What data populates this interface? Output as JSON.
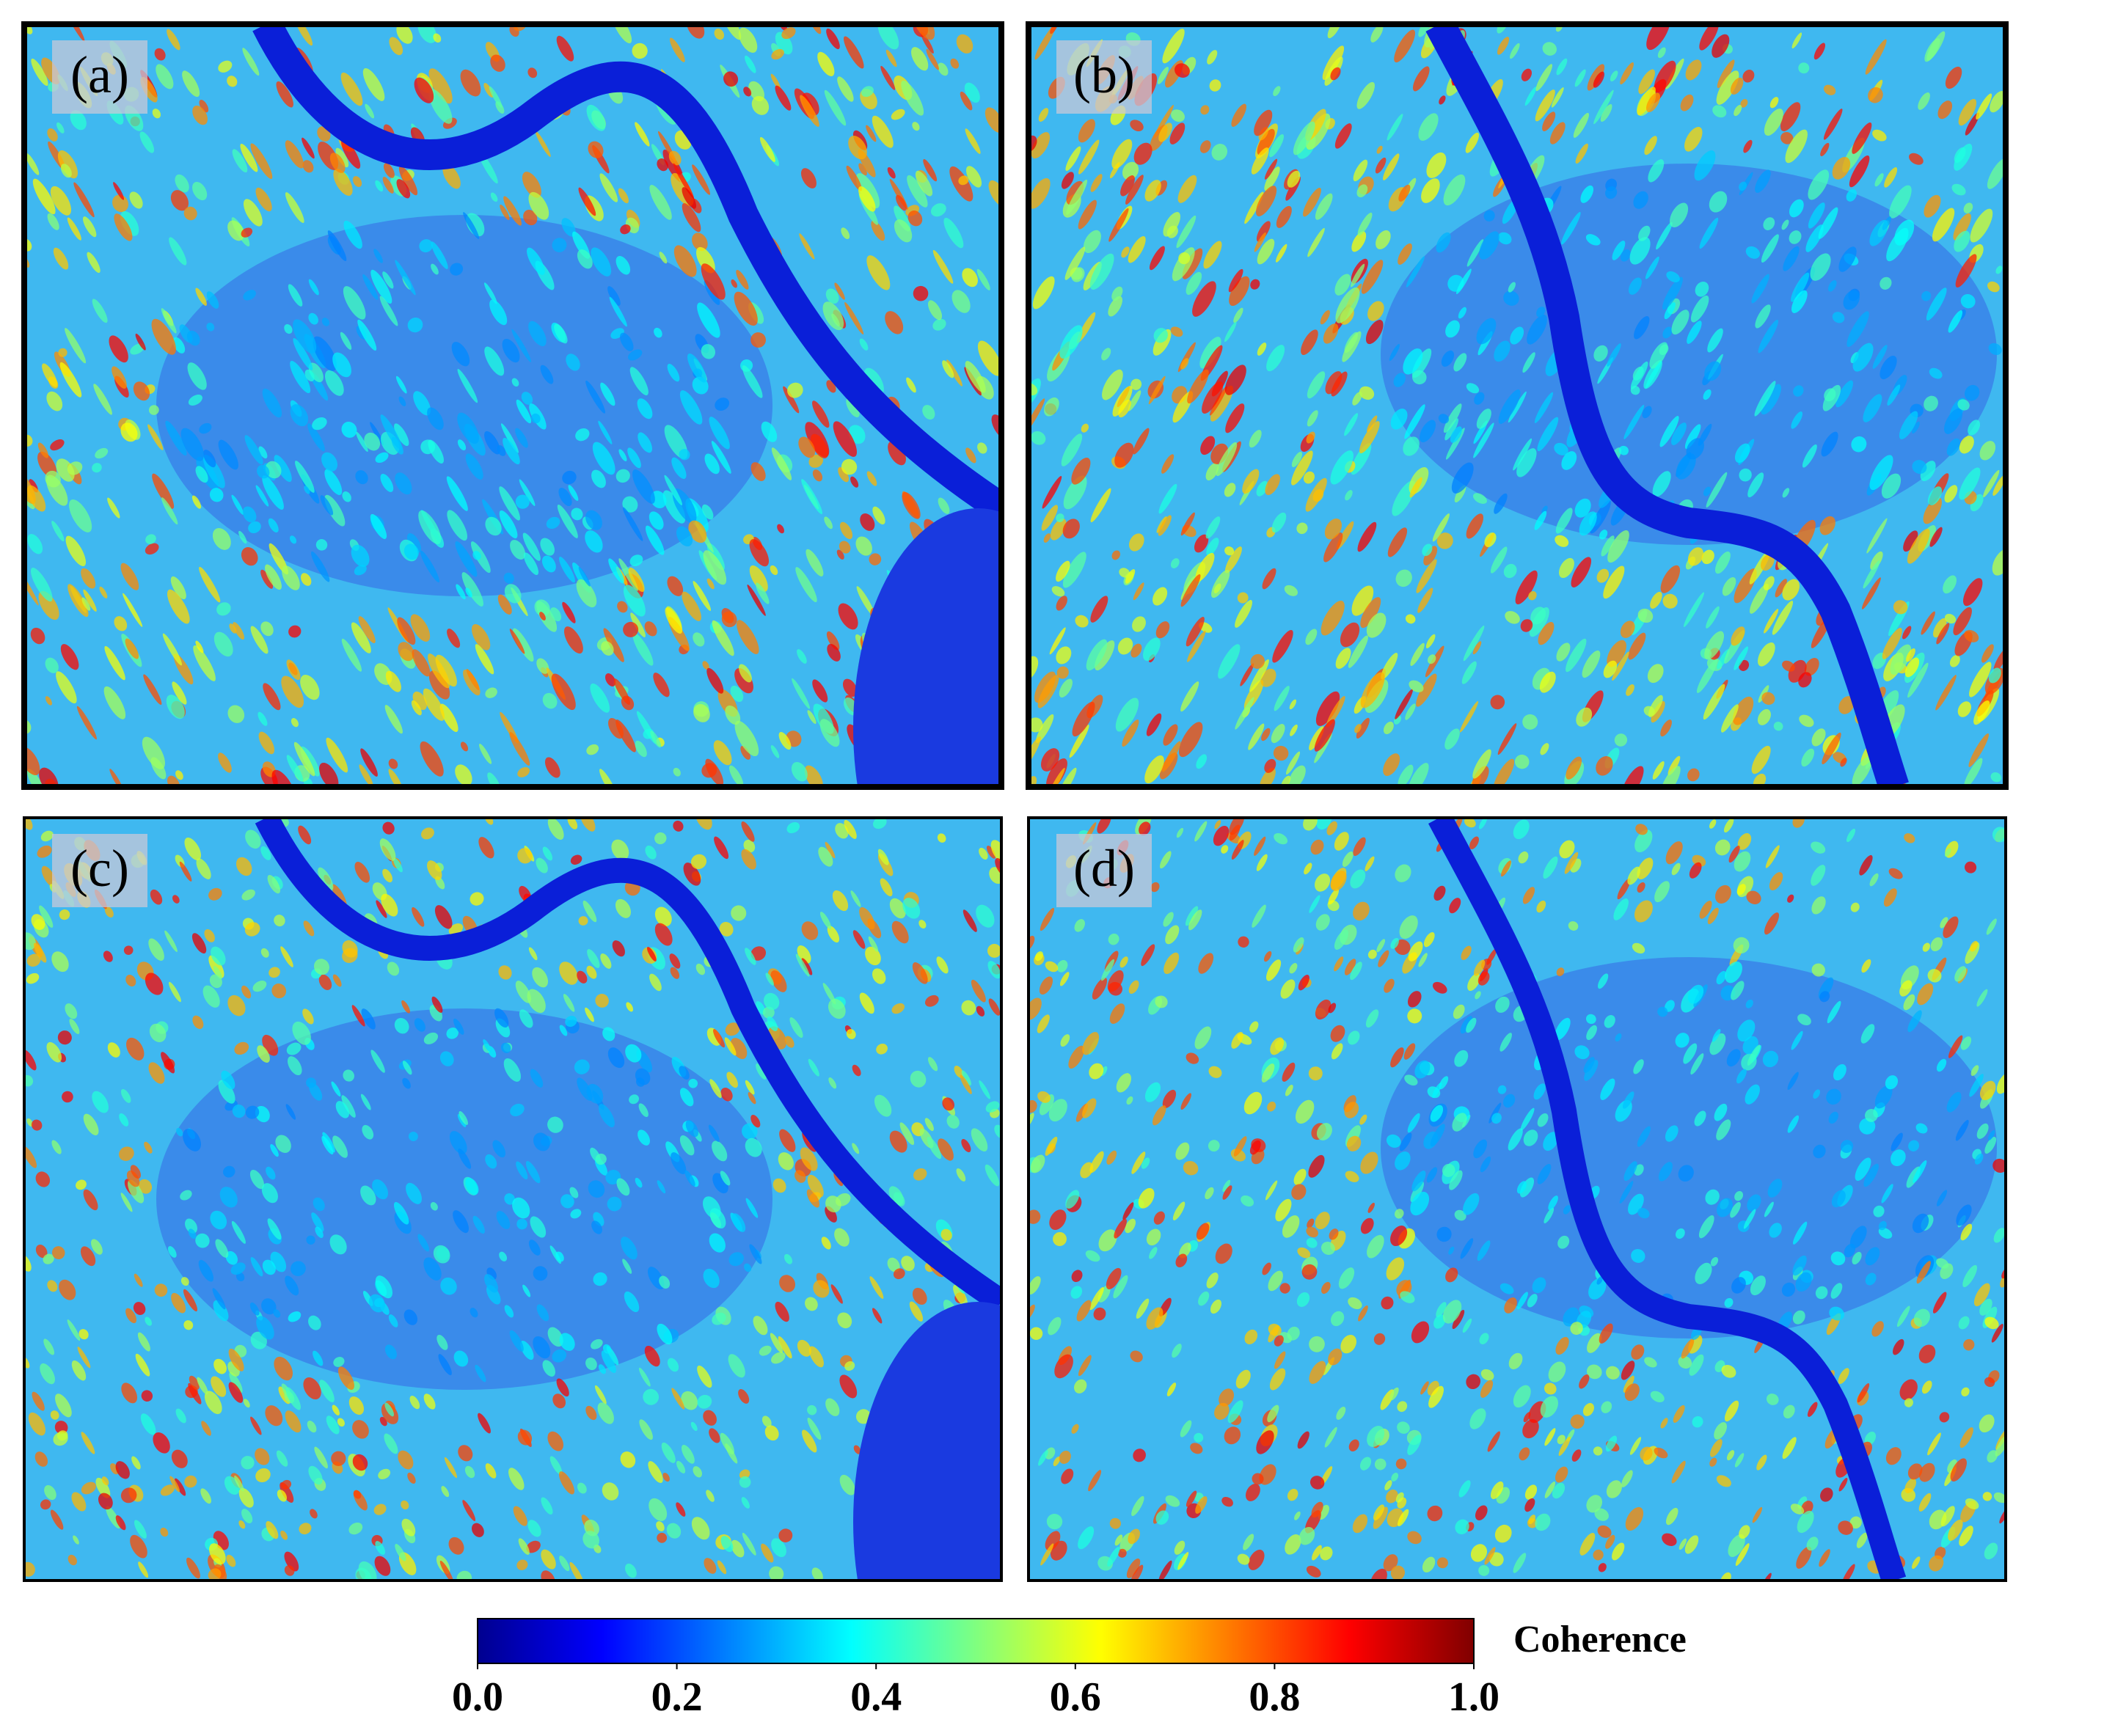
{
  "panels": [
    {
      "label": "(a)"
    },
    {
      "label": "(b)"
    },
    {
      "label": "(c)"
    },
    {
      "label": "(d)"
    }
  ],
  "colorbar": {
    "label": "Coherence",
    "lim": [
      0,
      1
    ],
    "ticks": [
      {
        "value": 0,
        "label": "0.0"
      },
      {
        "value": 0.2,
        "label": "0.2"
      },
      {
        "value": 0.4,
        "label": "0.4"
      },
      {
        "value": 0.6,
        "label": "0.6"
      },
      {
        "value": 0.8,
        "label": "0.8"
      },
      {
        "value": 1,
        "label": "1.0"
      }
    ]
  }
}
